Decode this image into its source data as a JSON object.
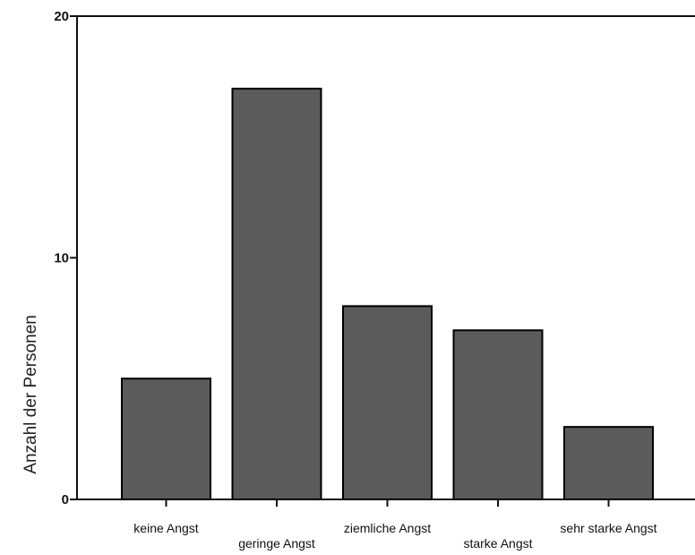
{
  "chart_data": {
    "type": "bar",
    "title": "",
    "xlabel": "",
    "ylabel": "Anzahl der Personen",
    "categories": [
      "keine Angst",
      "geringe Angst",
      "ziemliche Angst",
      "starke Angst",
      "sehr starke Angst"
    ],
    "values": [
      5,
      17,
      8,
      7,
      3
    ],
    "ylim": [
      0,
      20
    ],
    "yticks": [
      0,
      10,
      20
    ],
    "grid": false,
    "legend": "none",
    "colors": {
      "bar": "#5b5b5b",
      "axis": "#111111"
    }
  }
}
